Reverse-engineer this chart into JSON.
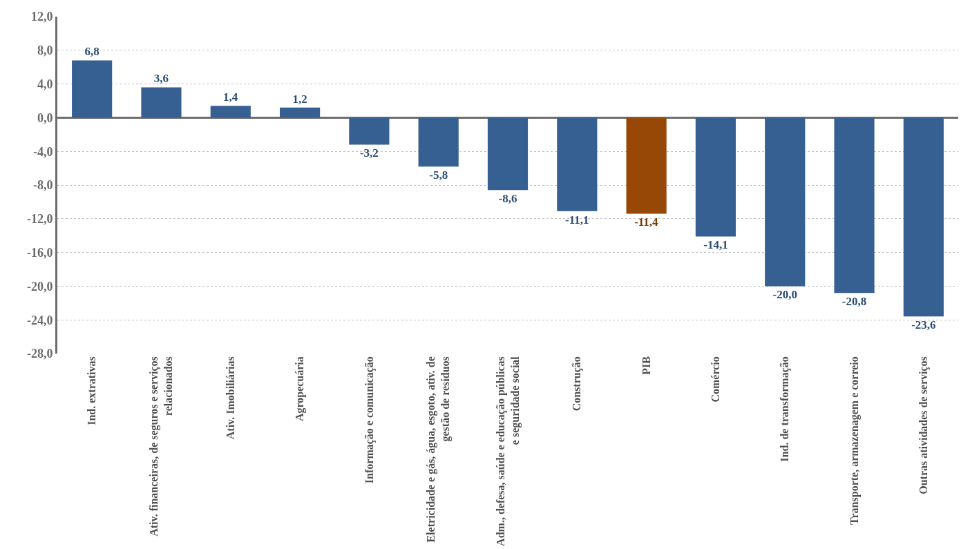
{
  "chart_data": {
    "type": "bar",
    "categories": [
      "Ind. extrativas",
      "Ativ. financeiras, de seguros e serviços\nrelacionados",
      "Ativ. Imobiliárias",
      "Agropecuária",
      "Informação e comunicação",
      "Eletricidade e gás, água, esgoto, ativ. de\ngestão de resíduos",
      "Adm., defesa, saúde e educação públicas\ne seguridade social",
      "Construção",
      "PIB",
      "Comércio",
      "Ind. de transformação",
      "Transporte, armazenagem e correio",
      "Outras atividades de serviços"
    ],
    "values": [
      6.8,
      3.6,
      1.4,
      1.2,
      -3.2,
      -5.8,
      -8.6,
      -11.1,
      -11.4,
      -14.1,
      -20.0,
      -20.8,
      -23.6
    ],
    "value_labels": [
      "6,8",
      "3,6",
      "1,4",
      "1,2",
      "-3,2",
      "-5,8",
      "-8,6",
      "-11,1",
      "-11,4",
      "-14,1",
      "-20,0",
      "-20,8",
      "-23,6"
    ],
    "colors": [
      "#366092",
      "#366092",
      "#366092",
      "#366092",
      "#366092",
      "#366092",
      "#366092",
      "#366092",
      "#974806",
      "#366092",
      "#366092",
      "#366092",
      "#366092"
    ],
    "ylim": [
      -28,
      12
    ],
    "yticks": [
      {
        "value": 12,
        "label": "12,0"
      },
      {
        "value": 8,
        "label": "8,0"
      },
      {
        "value": 4,
        "label": "4,0"
      },
      {
        "value": 0,
        "label": "0,0"
      },
      {
        "value": -4,
        "label": "-4,0"
      },
      {
        "value": -8,
        "label": "-8,0"
      },
      {
        "value": -12,
        "label": "-12,0"
      },
      {
        "value": -16,
        "label": "-16,0"
      },
      {
        "value": -20,
        "label": "-20,0"
      },
      {
        "value": -24,
        "label": "-24,0"
      },
      {
        "value": -28,
        "label": "-28,0"
      }
    ],
    "grid": "y"
  }
}
